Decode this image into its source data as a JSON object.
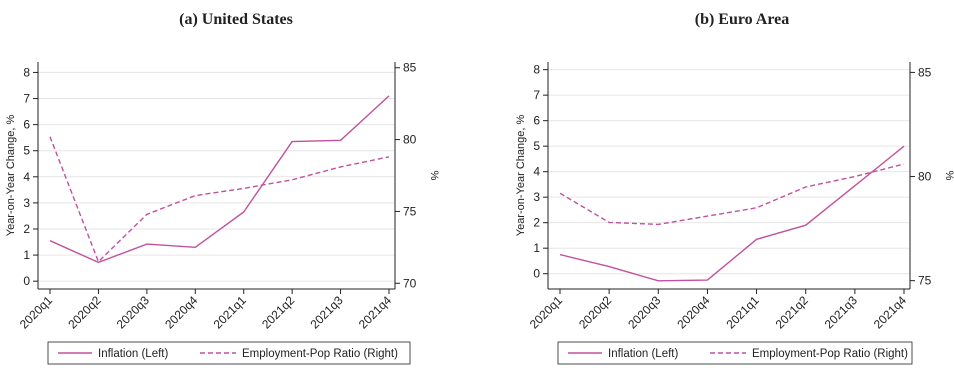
{
  "colors": {
    "line": "#c2519d",
    "axis": "#222222",
    "grid": "#e6e6e6"
  },
  "chart_data": [
    {
      "type": "line",
      "title": "(a) United States",
      "categories": [
        "2020q1",
        "2020q2",
        "2020q3",
        "2020q4",
        "2021q1",
        "2021q2",
        "2021q3",
        "2021q4"
      ],
      "series": [
        {
          "name": "Inflation (Left)",
          "axis": "left",
          "style": "solid",
          "values": [
            1.55,
            0.72,
            1.42,
            1.3,
            2.65,
            5.35,
            5.4,
            7.1
          ]
        },
        {
          "name": "Employment-Pop Ratio (Right)",
          "axis": "right",
          "style": "dashed",
          "values": [
            80.2,
            71.5,
            74.8,
            76.1,
            76.6,
            77.2,
            78.1,
            78.8
          ]
        }
      ],
      "ylabel_left": "Year-on-Year Change, %",
      "ylabel_right": "%",
      "ylim_left": [
        -0.3,
        8.4
      ],
      "yticks_left": [
        0,
        1,
        2,
        3,
        4,
        5,
        6,
        7,
        8
      ],
      "ylim_right": [
        69.6,
        85.4
      ],
      "yticks_right": [
        70,
        75,
        80,
        85
      ],
      "grid": true,
      "legend": "bottom"
    },
    {
      "type": "line",
      "title": "(b) Euro Area",
      "categories": [
        "2020q1",
        "2020q2",
        "2020q3",
        "2020q4",
        "2021q1",
        "2021q2",
        "2021q3",
        "2021q4"
      ],
      "series": [
        {
          "name": "Inflation (Left)",
          "axis": "left",
          "style": "solid",
          "values": [
            0.75,
            0.28,
            -0.28,
            -0.25,
            1.35,
            1.9,
            3.45,
            5.0
          ]
        },
        {
          "name": "Employment-Pop Ratio (Right)",
          "axis": "right",
          "style": "dashed",
          "values": [
            79.2,
            77.8,
            77.7,
            78.1,
            78.5,
            79.5,
            80.0,
            80.6
          ]
        }
      ],
      "ylabel_left": "Year-on-Year Change, %",
      "ylabel_right": "%",
      "ylim_left": [
        -0.6,
        8.3
      ],
      "yticks_left": [
        0,
        1,
        2,
        3,
        4,
        5,
        6,
        7,
        8
      ],
      "ylim_right": [
        74.6,
        85.5
      ],
      "yticks_right": [
        75,
        80,
        85
      ],
      "grid": true,
      "legend": "bottom"
    }
  ]
}
